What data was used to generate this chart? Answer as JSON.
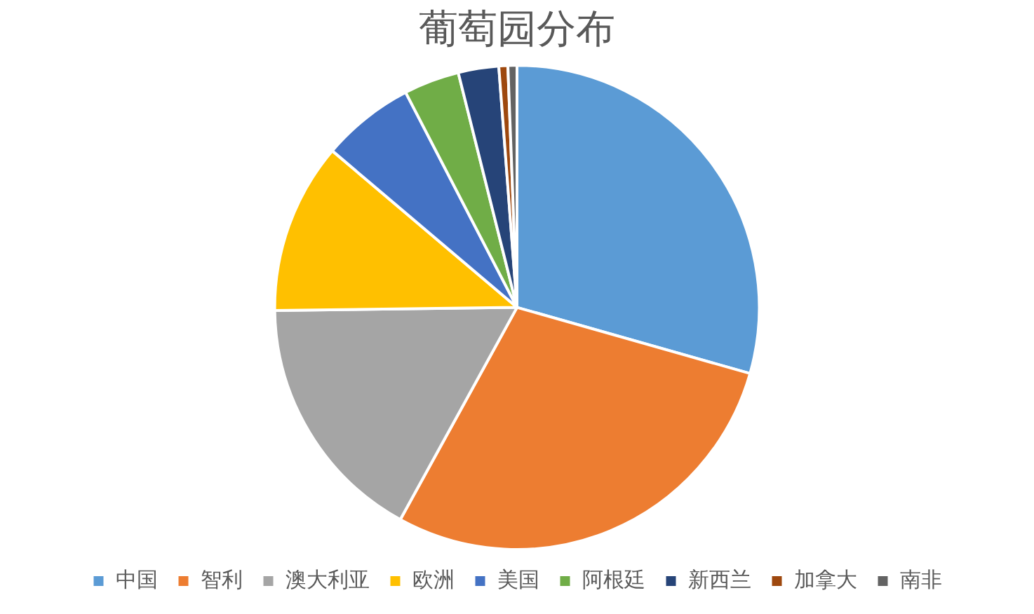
{
  "chart_data": {
    "type": "pie",
    "title": "葡萄园分布",
    "categories": [
      "中国",
      "智利",
      "澳大利亚",
      "欧洲",
      "美国",
      "阿根廷",
      "新西兰",
      "加拿大",
      "南非"
    ],
    "values": [
      29.4,
      28.6,
      16.8,
      11.4,
      6.2,
      3.7,
      2.7,
      0.6,
      0.6
    ],
    "colors": [
      "#5b9bd5",
      "#ed7d31",
      "#a5a5a5",
      "#ffc000",
      "#4472c4",
      "#70ad47",
      "#264478",
      "#9e480e",
      "#636363"
    ],
    "legend": "bottom"
  }
}
